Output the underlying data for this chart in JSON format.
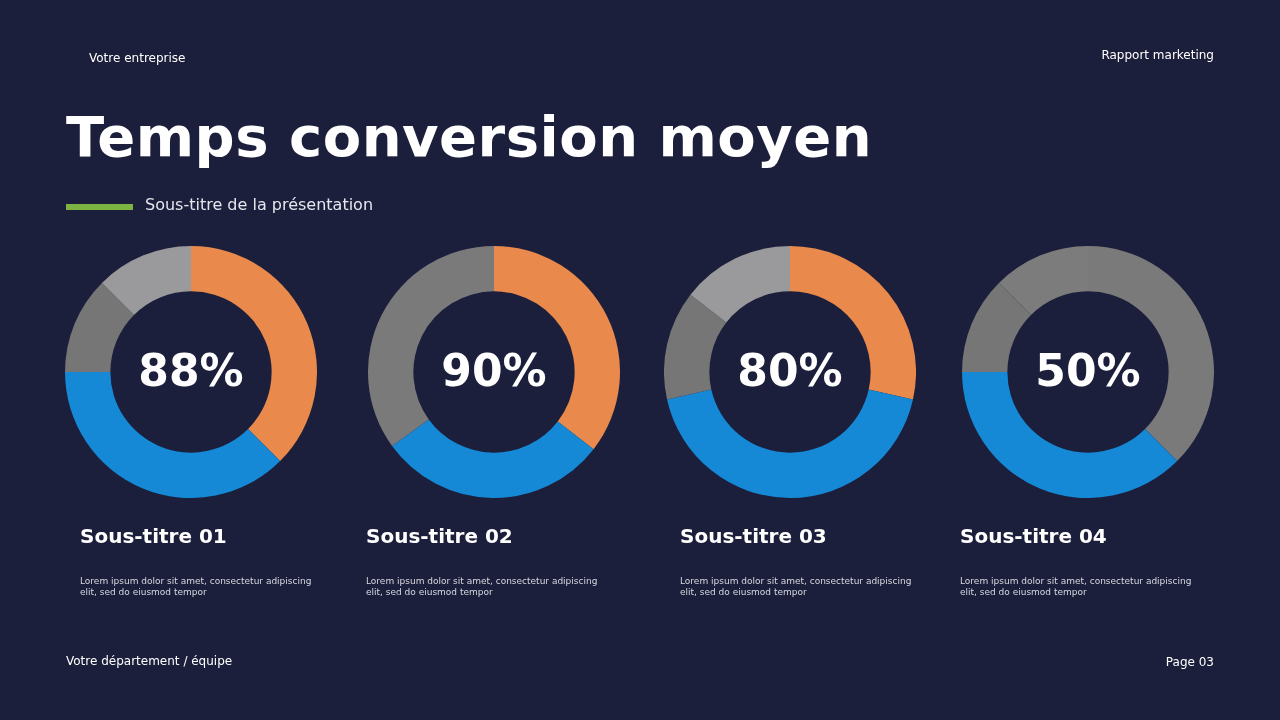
{
  "chart_data": [
    {
      "type": "other",
      "title": "Temps conversion moyen",
      "subtitle": "Sous-titre de la présentation",
      "annotations": [
        "Votre entreprise",
        "Rapport marketing",
        "Votre département / équipe",
        "Page 03"
      ]
    },
    {
      "type": "donut",
      "title": "Sous-titre 01",
      "categories": [
        null,
        null,
        null,
        null
      ],
      "values": [
        37.5,
        37.5,
        12.5,
        12.5
      ],
      "colors": [
        "#e98a4c",
        "#1589d6",
        "#767676",
        "#9a999b"
      ],
      "annotations": [
        "88%",
        "Lorem ipsum dolor sit amet, consectetur adipiscing elit, sed do eiusmod tempor"
      ]
    },
    {
      "type": "donut",
      "title": "Sous-titre 02",
      "categories": [
        null,
        null,
        null
      ],
      "values": [
        35.5,
        29.5,
        35
      ],
      "colors": [
        "#e98a4c",
        "#1589d6",
        "#7a7a7a"
      ],
      "annotations": [
        "90%",
        "Lorem ipsum dolor sit amet, consectetur adipiscing elit, sed do eiusmod tempor"
      ]
    },
    {
      "type": "donut",
      "title": "Sous-titre 03",
      "categories": [
        null,
        null,
        null,
        null
      ],
      "values": [
        28.5,
        43,
        14,
        14.5
      ],
      "colors": [
        "#e98a4c",
        "#1589d6",
        "#767676",
        "#9a999b"
      ],
      "annotations": [
        "80%",
        "Lorem ipsum dolor sit amet, consectetur adipiscing elit, sed do eiusmod tempor"
      ]
    },
    {
      "type": "donut",
      "title": "Sous-titre 04",
      "categories": [
        null,
        null,
        null,
        null
      ],
      "values": [
        37.5,
        37.5,
        12.5,
        12.5
      ],
      "colors": [
        "#7a7a7a",
        "#1589d6",
        "#767676",
        "#7c7c7c"
      ],
      "annotations": [
        "50%",
        "Lorem ipsum dolor sit amet, consectetur adipiscing elit, sed do eiusmod tempor"
      ]
    }
  ]
}
